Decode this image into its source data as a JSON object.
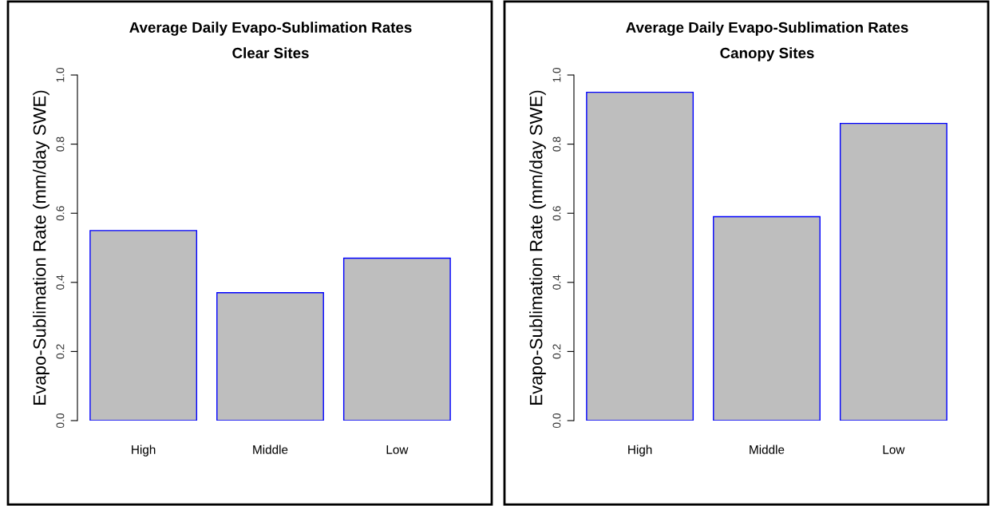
{
  "chart_data": [
    {
      "type": "bar",
      "title": "Average Daily Evapo-Sublimation Rates",
      "subtitle": "Clear Sites",
      "ylabel": "Evapo-Sublimation Rate (mm/day SWE)",
      "categories": [
        "High",
        "Middle",
        "Low"
      ],
      "values": [
        0.55,
        0.37,
        0.47
      ],
      "color": "#bebebe",
      "ylim": [
        0,
        1
      ],
      "yticks": [
        {
          "value": 0,
          "label": "0.0"
        },
        {
          "value": 0.2,
          "label": "0.2"
        },
        {
          "value": 0.4,
          "label": "0.4"
        },
        {
          "value": 0.6,
          "label": "0.6"
        },
        {
          "value": 0.8,
          "label": "0.8"
        },
        {
          "value": 1,
          "label": "1.0"
        }
      ],
      "grid": false,
      "legend": false
    },
    {
      "type": "bar",
      "title": "Average Daily Evapo-Sublimation Rates",
      "subtitle": "Canopy Sites",
      "ylabel": "Evapo-Sublimation Rate (mm/day SWE)",
      "categories": [
        "High",
        "Middle",
        "Low"
      ],
      "values": [
        0.95,
        0.59,
        0.86
      ],
      "color": "#bebebe",
      "ylim": [
        0,
        1
      ],
      "yticks": [
        {
          "value": 0,
          "label": "0.0"
        },
        {
          "value": 0.2,
          "label": "0.2"
        },
        {
          "value": 0.4,
          "label": "0.4"
        },
        {
          "value": 0.6,
          "label": "0.6"
        },
        {
          "value": 0.8,
          "label": "0.8"
        },
        {
          "value": 1,
          "label": "1.0"
        }
      ],
      "grid": false,
      "legend": false
    }
  ]
}
